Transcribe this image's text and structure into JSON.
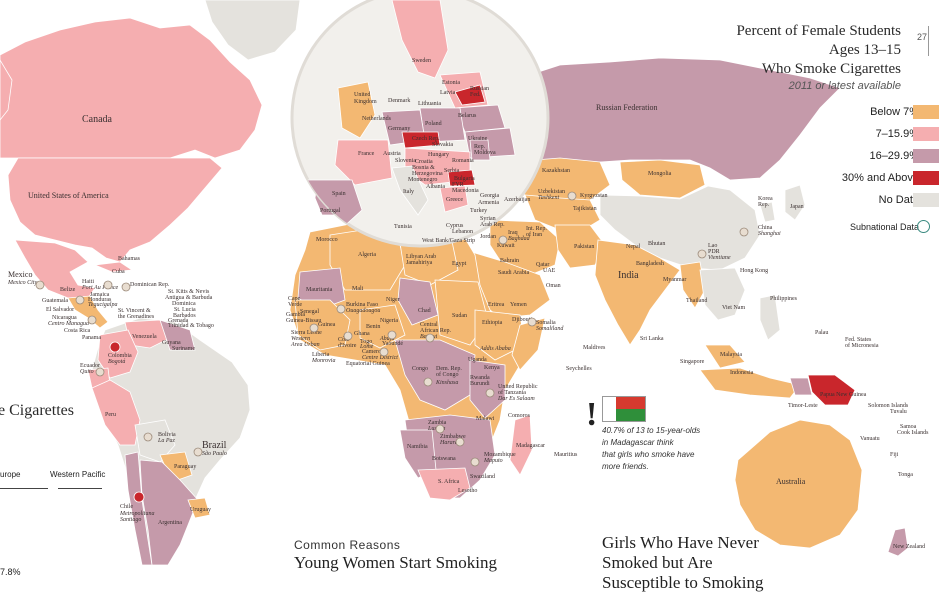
{
  "header": {
    "title_line1": "Percent of Female Students",
    "title_line2": "Ages 13–15",
    "title_line3": "Who Smoke Cigarettes",
    "subtitle": "2011 or latest available",
    "page_number": "27"
  },
  "legend": {
    "items": [
      {
        "label": "Below 7%",
        "color": "#f3b872"
      },
      {
        "label": "7–15.9%",
        "color": "#f5aeb0"
      },
      {
        "label": "16–29.9%",
        "color": "#c59aaa"
      },
      {
        "label": "30% and Above",
        "color": "#c9262c"
      },
      {
        "label": "No Data",
        "color": "#e4e2dd"
      }
    ],
    "subnational_label": "Subnational Data",
    "subnational_color": "#3a8a80"
  },
  "colors": {
    "ocean": "#ffffff",
    "below7": "#f3b872",
    "p7_15": "#f5aeb0",
    "p16_29": "#c59aaa",
    "p30": "#c9262c",
    "nodata": "#e4e2dd",
    "border": "#ffffff"
  },
  "countries": {
    "canada": "Canada",
    "usa": "United States of America",
    "mexico": "Mexico",
    "mexico_city": "Mexico City",
    "bahamas": "Bahamas",
    "cuba": "Cuba",
    "haiti": "Haiti",
    "haiti_city": "Port Au Prince",
    "dominican_rep": "Dominican Rep.",
    "belize": "Belize",
    "jamaica": "Jamaica",
    "honduras": "Honduras",
    "honduras_city": "Tegucigalpa",
    "guatemala": "Guatemala",
    "el_salvador": "El Salvador",
    "nicaragua": "Nicaragua",
    "nicaragua_city": "Centro Managua",
    "costa_rica": "Costa Rica",
    "panama": "Panama",
    "st_kitts": "St. Kitts & Nevis",
    "antigua": "Antigua & Barbuda",
    "dominica": "Dominica",
    "st_lucia": "St. Lucia",
    "barbados": "Barbados",
    "st_vincent": "St. Vincent &",
    "st_vincent2": "the Grenadines",
    "grenada": "Grenada",
    "trinidad": "Trinidad & Tobago",
    "venezuela": "Venezuela",
    "guyana": "Guyana",
    "suriname": "Suriname",
    "colombia": "Colombia",
    "colombia_city": "Bogotá",
    "ecuador": "Ecuador",
    "ecuador_city": "Quito",
    "peru": "Peru",
    "bolivia": "Bolivia",
    "bolivia_city": "La Paz",
    "brazil": "Brazil",
    "brazil_city": "São Paulo",
    "paraguay": "Paraguay",
    "chile": "Chile",
    "chile_city": "Metropolitana",
    "chile_city2": "Santiago",
    "uruguay": "Uruguay",
    "argentina": "Argentina",
    "russia": "Russian Federation",
    "sweden": "Sweden",
    "uk": "United",
    "uk2": "Kingdom",
    "denmark": "Denmark",
    "estonia": "Estonia",
    "latvia": "Latvia",
    "lithuania": "Lithuania",
    "russian_fed_small": "Russian",
    "russian_fed_small2": "Fed.",
    "belarus": "Belarus",
    "netherlands": "Netherlands",
    "germany": "Germany",
    "poland": "Poland",
    "czech": "Czech Rep.",
    "slovakia": "Slovakia",
    "ukraine": "Ukraine",
    "france": "France",
    "austria": "Austria",
    "hungary": "Hungary",
    "slovenia": "Slovenia",
    "croatia": "Croatia",
    "romania": "Romania",
    "moldova": "Rep.",
    "moldova2": "Moldova",
    "bosnia": "Bosnia &",
    "bosnia2": "Herzegovina",
    "serbia": "Serbia",
    "montenegro": "Montenegro",
    "bulgaria": "Bulgaria",
    "italy": "Italy",
    "albania": "Albania",
    "fyr": "FYR",
    "macedonia": "Macedonia",
    "greece": "Greece",
    "spain": "Spain",
    "portugal": "Portugal",
    "georgia": "Georgia",
    "armenia": "Armenia",
    "azerbaijan": "Azerbaijan",
    "turkey": "Turkey",
    "cyprus": "Cyprus",
    "lebanon": "Lebanon",
    "syria": "Syrian",
    "syria2": "Arab Rep.",
    "iraq": "Iraq",
    "iraq_city": "Baghdad",
    "iran": "Int. Rep.",
    "iran2": "of Iran",
    "jordan": "Jordan",
    "west_bank": "West Bank/Gaza Strip",
    "kuwait": "Kuwait",
    "bahrain": "Bahrain",
    "qatar": "Qatar",
    "uae": "UAE",
    "saudi": "Saudi Arabia",
    "oman": "Oman",
    "yemen": "Yemen",
    "kazakhstan": "Kazakhstan",
    "uzbekistan": "Uzbekistan",
    "uzbekistan_city": "Tashkent",
    "kyrgyzstan": "Kyrgyzstan",
    "tajikistan": "Tajikistan",
    "mongolia": "Mongolia",
    "pakistan": "Pakistan",
    "nepal": "Nepal",
    "bhutan": "Bhutan",
    "bangladesh": "Bangladesh",
    "india": "India",
    "myanmar": "Myanmar",
    "china": "China",
    "china_city": "Shanghai",
    "korea": "Korea",
    "korea2": "Rep.",
    "japan": "Japan",
    "lao": "Lao",
    "lao2": "PDR",
    "lao_city": "Vientiane",
    "thailand": "Thailand",
    "viet_nam": "Viet Nam",
    "hong_kong": "Hong Kong",
    "philippines": "Philippines",
    "sri_lanka": "Sri Lanka",
    "maldives": "Maldives",
    "malaysia": "Malaysia",
    "singapore": "Singapore",
    "indonesia": "Indonesia",
    "timor": "Timor-Leste",
    "png": "Papua New Guinea",
    "solomon": "Solomon Islands",
    "palau": "Palau",
    "micronesia": "Fed. States",
    "micronesia2": "of Micronesia",
    "tuvalu": "Tuvalu",
    "samoa": "Samoa",
    "cook": "Cook Islands",
    "vanuatu": "Vanuatu",
    "fiji": "Fiji",
    "tonga": "Tonga",
    "australia": "Australia",
    "new_zealand": "New Zealand",
    "morocco": "Morocco",
    "tunisia": "Tunisia",
    "algeria": "Algeria",
    "libya": "Libyan Arab",
    "libya2": "Jamahiriya",
    "egypt": "Egypt",
    "mauritania": "Mauritania",
    "mali": "Mali",
    "niger": "Niger",
    "chad": "Chad",
    "sudan": "Sudan",
    "eritrea": "Eritrea",
    "ethiopia": "Ethiopia",
    "ethiopia_city": "Addis Ababa",
    "djibouti": "Djibouti",
    "somalia": "Somalia",
    "somalia_city": "Somaliland",
    "cape_verde": "Cape",
    "cape_verde2": "Verde",
    "senegal": "Senegal",
    "gambia": "Gambia",
    "guinea_bissau": "Guinea-Bissau",
    "guinea": "Guinea",
    "guinea_city": "Conakry",
    "sierra_leone": "Sierra Leone",
    "sierra_leone_city": "Western",
    "sierra_leone_city2": "Area Urban",
    "liberia": "Liberia",
    "liberia_city": "Monrovia",
    "burkina": "Burkina Faso",
    "burkina_city": "Ouagadougou",
    "cote": "Côte",
    "cote2": "d'Ivoire",
    "ghana": "Ghana",
    "togo": "Togo",
    "benin": "Benin",
    "togo_city": "Lomé",
    "cameroon_city": "Yaoundé",
    "cameroon": "Cameroon",
    "cameroon_city2": "Centre District",
    "nigeria": "Nigeria",
    "nigeria_city": "Abuja",
    "car": "Central",
    "car2": "African Rep.",
    "car_city": "Bangui",
    "eq_guinea": "Equatorial Guinea",
    "congo": "Congo",
    "drc": "Dem. Rep.",
    "drc2": "of Congo",
    "drc_city": "Kinshasa",
    "uganda": "Uganda",
    "kenya": "Kenya",
    "rwanda": "Rwanda",
    "burundi": "Burundi",
    "tanzania": "United Republic",
    "tanzania2": "of Tanzania",
    "tanzania_city": "Dar Es Salaam",
    "seychelles": "Seychelles",
    "comoros": "Comoros",
    "malawi": "Malawi",
    "zambia": "Zambia",
    "zambia_city": "Lusaka",
    "zimbabwe": "Zimbabwe",
    "zimbabwe_city": "Harare",
    "mozambique": "Mozambique",
    "mozambique_city": "Maputo",
    "madagascar": "Madagascar",
    "mauritius": "Mauritius",
    "namibia": "Namibia",
    "botswana": "Botswana",
    "swaziland": "Swaziland",
    "s_africa": "S. Africa",
    "lesotho": "Lesotho"
  },
  "callout": {
    "mark": "!",
    "text_line1": "40.7% of 13 to 15-year-olds",
    "text_line2": "in Madagascar think",
    "text_line3": "that girls who smoke have",
    "text_line4": "more friends."
  },
  "sections": {
    "left_title_fragment": "e Cigarettes",
    "regions": [
      "urope",
      "Western Pacific"
    ],
    "bottom_value": "7.8%",
    "common_reasons_small": "Common Reasons",
    "common_reasons_big": "Young Women Start Smoking",
    "girls_never_line1": "Girls Who Have Never",
    "girls_never_line2": "Smoked but Are",
    "girls_never_line3": "Susceptible to Smoking"
  }
}
